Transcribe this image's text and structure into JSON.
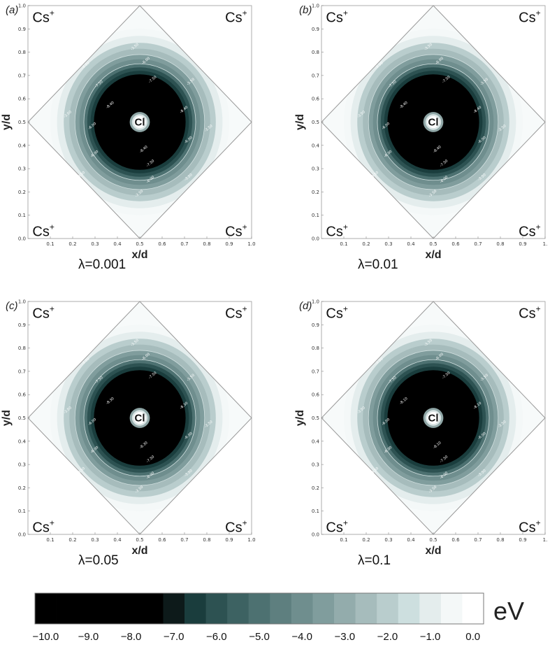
{
  "chart_data": {
    "type": "heatmap",
    "panels": [
      {
        "label": "(a)",
        "lambda_label": "λ=0.001",
        "xlabel": "x/d",
        "ylabel": "y/d",
        "x_ticks": [
          "0.1",
          "0.2",
          "0.3",
          "0.4",
          "0.5",
          "0.6",
          "0.7",
          "0.8",
          "0.9",
          "1.0"
        ],
        "y_ticks": [
          "0.0",
          "0.1",
          "0.2",
          "0.3",
          "0.4",
          "0.5",
          "0.6",
          "0.7",
          "0.8",
          "0.9",
          "1.0"
        ],
        "corner_ions": [
          "Cs+",
          "Cs+",
          "Cs+",
          "Cs+"
        ],
        "center_ion": "Cl",
        "contour_labels": [
          "-8.40",
          "-7.50",
          "-6.00",
          "-3.50"
        ]
      },
      {
        "label": "(b)",
        "lambda_label": "λ=0.01",
        "xlabel": "x/d",
        "ylabel": "y/d",
        "x_ticks": [
          "0.1",
          "0.2",
          "0.3",
          "0.4",
          "0.5",
          "0.6",
          "0.7",
          "0.8",
          "0.9",
          "1."
        ],
        "y_ticks": [
          "0.0",
          "0.1",
          "0.2",
          "0.3",
          "0.4",
          "0.5",
          "0.6",
          "0.7",
          "0.8",
          "0.9",
          "1.0"
        ],
        "corner_ions": [
          "Cs+",
          "Cs+",
          "Cs+",
          "Cs+"
        ],
        "center_ion": "Cl",
        "contour_labels": [
          "-8.40",
          "-7.50",
          "-6.00",
          "-3.50"
        ]
      },
      {
        "label": "(c)",
        "lambda_label": "λ=0.05",
        "xlabel": "x/d",
        "ylabel": "y/d",
        "x_ticks": [
          "0.1",
          "0.2",
          "0.3",
          "0.4",
          "0.5",
          "0.6",
          "0.7",
          "0.8",
          "0.9",
          "1.0"
        ],
        "y_ticks": [
          "0.0",
          "0.1",
          "0.2",
          "0.3",
          "0.4",
          "0.5",
          "0.6",
          "0.7",
          "0.8",
          "0.9",
          "1.0"
        ],
        "corner_ions": [
          "Cs+",
          "Cs+",
          "Cs+",
          "Cs+"
        ],
        "center_ion": "Cl",
        "contour_labels": [
          "-8.30",
          "-7.50",
          "-6.00",
          "-3.50"
        ]
      },
      {
        "label": "(d)",
        "lambda_label": "λ=0.1",
        "xlabel": "x/d",
        "ylabel": "y/d",
        "x_ticks": [
          "0.1",
          "0.2",
          "0.3",
          "0.4",
          "0.5",
          "0.6",
          "0.7",
          "0.8",
          "0.9",
          "1."
        ],
        "y_ticks": [
          "0.0",
          "0.1",
          "0.2",
          "0.3",
          "0.4",
          "0.5",
          "0.6",
          "0.7",
          "0.8",
          "0.9",
          "1.0"
        ],
        "corner_ions": [
          "Cs+",
          "Cs+",
          "Cs+",
          "Cs+"
        ],
        "center_ion": "Cl",
        "contour_labels": [
          "-8.10",
          "-7.50",
          "-6.00",
          "-3.50"
        ]
      }
    ],
    "xlim": [
      0,
      1
    ],
    "ylim": [
      0,
      1
    ],
    "colorbar": {
      "unit": "eV",
      "range": [
        -10.0,
        0.0
      ],
      "tick_labels": [
        "−10.0",
        "−9.0",
        "−8.0",
        "−7.0",
        "−6.0",
        "−5.0",
        "−4.0",
        "−3.0",
        "−2.0",
        "−1.0",
        "0.0"
      ],
      "colors": [
        "#000000",
        "#000000",
        "#000000",
        "#000000",
        "#000000",
        "#000000",
        "#0d1a1a",
        "#1a3d3d",
        "#2d5252",
        "#3d6262",
        "#4d7171",
        "#5e7f7f",
        "#6f8e8e",
        "#809d9d",
        "#93acac",
        "#a6bcbc",
        "#b9cdcd",
        "#cddfdf",
        "#e4eded",
        "#f4f8f8",
        "#ffffff"
      ]
    }
  }
}
